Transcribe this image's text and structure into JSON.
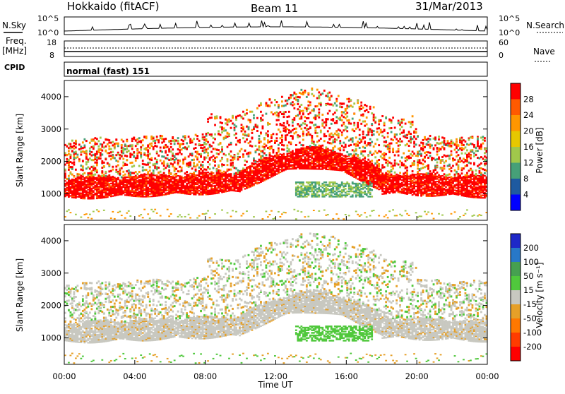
{
  "header": {
    "station": "Hokkaido (fitACF)",
    "beam": "Beam 11",
    "date": "31/Mar/2013"
  },
  "side_labels": {
    "nsky": "N.Sky",
    "nsearch": "N.Search",
    "freq": "Freq.",
    "freq_unit": "[MHz]",
    "cpid": "CPID",
    "nave": "Nave",
    "cpid_value": "normal (fast) 151"
  },
  "noise_axis": {
    "top": "10^5",
    "bottom": "10^0",
    "top_r": "10^5",
    "bottom_r": "10^0"
  },
  "freq_axis": {
    "top": "18",
    "bottom": "8",
    "top_r": "60",
    "bottom_r": "0"
  },
  "chart_data": [
    {
      "type": "heatmap",
      "name": "power",
      "ylabel": "Slant Range [km]",
      "ylim": [
        180,
        4500
      ],
      "yticks": [
        1000,
        2000,
        3000,
        4000
      ],
      "xlim": [
        0,
        24
      ],
      "colorbar": {
        "label": "Power [dB]",
        "ticks": [
          "28",
          "24",
          "20",
          "16",
          "12",
          "8",
          "4"
        ],
        "colors": [
          "#ff0000",
          "#ff5a00",
          "#ff9600",
          "#e6c800",
          "#a0c84b",
          "#46a078",
          "#1e5aa0",
          "#0000ff"
        ]
      }
    },
    {
      "type": "heatmap",
      "name": "velocity",
      "ylabel": "Slant Range [km]",
      "ylim": [
        180,
        4500
      ],
      "yticks": [
        1000,
        2000,
        3000,
        4000
      ],
      "xlim": [
        0,
        24
      ],
      "colorbar": {
        "label": "Velocity [m s⁻¹]",
        "ticks": [
          "200",
          "100",
          "50",
          "15",
          "-15",
          "-50",
          "-100",
          "-200"
        ],
        "colors": [
          "#1e28c8",
          "#2878c8",
          "#46a050",
          "#50c83c",
          "#c8c8c0",
          "#e6a028",
          "#ff7800",
          "#ff3c00",
          "#ff0000"
        ]
      }
    }
  ],
  "x_axis": {
    "ticks": [
      "00:00",
      "04:00",
      "08:00",
      "12:00",
      "16:00",
      "20:00",
      "00:00"
    ],
    "label": "Time UT"
  }
}
